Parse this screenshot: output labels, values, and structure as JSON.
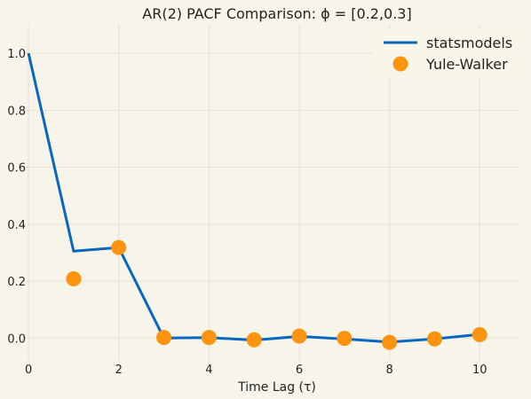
{
  "chart_data": {
    "type": "line",
    "title": "AR(2) PACF Comparison: ϕ = [0.2,0.3]",
    "xlabel": "Time Lag (τ)",
    "ylabel": "",
    "xlim": [
      -0.1,
      10.9
    ],
    "ylim": [
      -0.08,
      1.1
    ],
    "x_ticks": [
      0,
      2,
      4,
      6,
      8,
      10
    ],
    "y_ticks": [
      0.0,
      0.2,
      0.4,
      0.6,
      0.8,
      1.0
    ],
    "grid": true,
    "legend_position": "top-right",
    "series": [
      {
        "name": "statsmodels",
        "style": "line",
        "color": "#0868c1",
        "x": [
          0,
          1,
          2,
          3,
          4,
          5,
          6,
          7,
          8,
          9,
          10
        ],
        "y": [
          1.0,
          0.305,
          0.318,
          0.0,
          0.002,
          -0.007,
          0.006,
          -0.003,
          -0.014,
          -0.003,
          0.013
        ]
      },
      {
        "name": "Yule-Walker",
        "style": "marker",
        "color": "#fe930f",
        "x": [
          1,
          2,
          3,
          4,
          5,
          6,
          7,
          8,
          9,
          10
        ],
        "y": [
          0.208,
          0.318,
          0.002,
          0.002,
          -0.006,
          0.007,
          -0.001,
          -0.015,
          -0.003,
          0.012
        ]
      }
    ]
  },
  "colors": {
    "background": "#f7f5e9",
    "grid": "#e4e2d6",
    "text": "#222222"
  }
}
